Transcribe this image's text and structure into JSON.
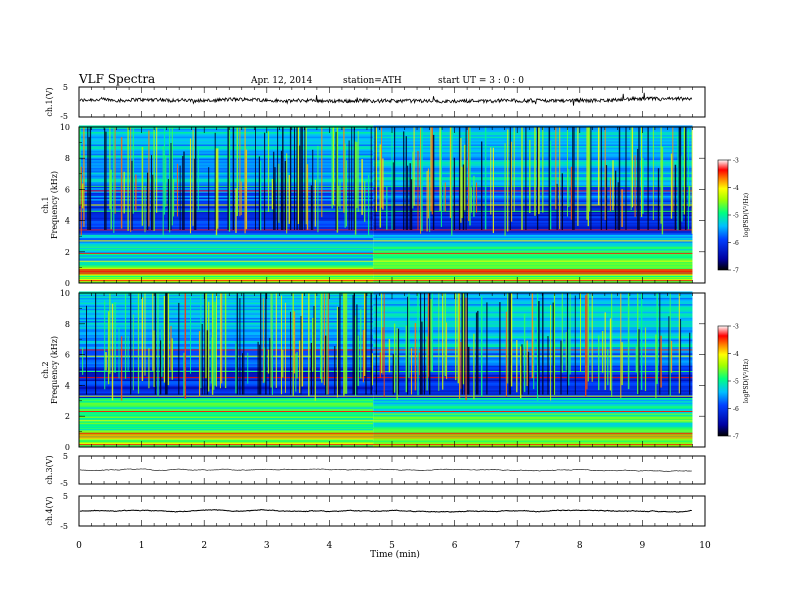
{
  "header": {
    "title": "VLF Spectra",
    "date": "Apr. 12, 2014",
    "station": "station=ATH",
    "start": "start UT = 3 : 0 : 0"
  },
  "chart_data": [
    {
      "type": "line",
      "panel": "ch1-waveform",
      "ylabel": "ch.1(V)",
      "ylim": [
        -5,
        5
      ],
      "yticks": [
        "5",
        "-5"
      ],
      "xlim": [
        0,
        10
      ],
      "x_end": 9.8,
      "baseline": 0.5,
      "noise": 1.2
    },
    {
      "type": "heatmap",
      "panel": "ch1-spectrogram",
      "ylabel": "ch.1 Frequency (kHz)",
      "ylabel_top": "ch.1",
      "ylabel_bottom": "Frequency (kHz)",
      "ylim": [
        0,
        10
      ],
      "yticks": [
        "0",
        "2",
        "4",
        "6",
        "8",
        "10"
      ],
      "xlim": [
        0,
        10
      ],
      "x_end": 9.8,
      "regime_change_min": 4.7,
      "colorbar": {
        "label": "logPSD(V²/Hz)",
        "min": -7,
        "max": -3,
        "ticks": [
          "-3",
          "-4",
          "-5",
          "-6",
          "-7"
        ]
      }
    },
    {
      "type": "heatmap",
      "panel": "ch2-spectrogram",
      "ylabel": "ch.2 Frequency (kHz)",
      "ylabel_top": "ch.2",
      "ylabel_bottom": "Frequency (kHz)",
      "ylim": [
        0,
        10
      ],
      "yticks": [
        "0",
        "2",
        "4",
        "6",
        "8",
        "10"
      ],
      "xlim": [
        0,
        10
      ],
      "x_end": 9.8,
      "regime_change_min": 4.7,
      "colorbar": {
        "label": "logPSD(V²/Hz)",
        "min": -7,
        "max": -3,
        "ticks": [
          "-3",
          "-4",
          "-5",
          "-6",
          "-7"
        ]
      }
    },
    {
      "type": "line",
      "panel": "ch3-waveform",
      "ylabel": "ch.3(V)",
      "ylim": [
        -5,
        5
      ],
      "yticks": [
        "5",
        "-5"
      ],
      "xlim": [
        0,
        10
      ],
      "x_end": 9.8,
      "baseline": 0,
      "noise": 0.05
    },
    {
      "type": "line",
      "panel": "ch4-waveform",
      "ylabel": "ch.4(V)",
      "ylim": [
        -5,
        5
      ],
      "yticks": [
        "5",
        "-5"
      ],
      "xlim": [
        0,
        10
      ],
      "x_end": 9.8,
      "baseline": 0,
      "noise": 0.15
    }
  ],
  "xaxis": {
    "label": "Time (min)",
    "ticks": [
      "0",
      "1",
      "2",
      "3",
      "4",
      "5",
      "6",
      "7",
      "8",
      "9",
      "10"
    ]
  }
}
